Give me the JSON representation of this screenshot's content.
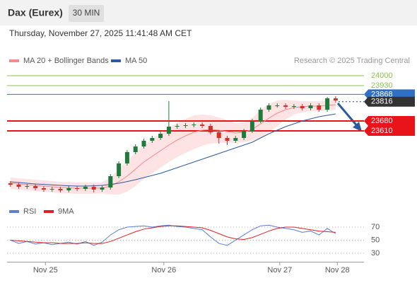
{
  "header": {
    "title": "Dax (Eurex)",
    "interval": "30 MIN",
    "timestamp": "Thursday, November 27, 2025 11:41:48 AM CET"
  },
  "chart_data": [
    {
      "type": "candlestick",
      "credit": "Research © 2025 Trading Central",
      "xlim": [
        -0.4,
        42.4
      ],
      "ylim": [
        23160,
        24060
      ],
      "xticks": [
        {
          "value": 4.2,
          "label": "Nov 25"
        },
        {
          "value": 18.4,
          "label": "Nov 26"
        },
        {
          "value": 32.3,
          "label": "Nov 27"
        },
        {
          "value": 39.2,
          "label": "Nov 28"
        }
      ],
      "candles": {
        "up_color": "#1e7b3c",
        "down_color": "#d0312d",
        "open": [
          23240,
          23230,
          23215,
          23220,
          23205,
          23195,
          23200,
          23190,
          23205,
          23200,
          23215,
          23195,
          23210,
          23290,
          23380,
          23460,
          23500,
          23540,
          23560,
          23590,
          23640,
          23645,
          23650,
          23655,
          23645,
          23600,
          23560,
          23540,
          23560,
          23610,
          23680,
          23760,
          23790,
          23790,
          23780,
          23785,
          23770,
          23790,
          23760,
          23840
        ],
        "high": [
          23255,
          23245,
          23235,
          23235,
          23220,
          23215,
          23215,
          23220,
          23220,
          23230,
          23230,
          23225,
          23305,
          23395,
          23475,
          23515,
          23555,
          23575,
          23605,
          23820,
          23660,
          23665,
          23670,
          23670,
          23660,
          23615,
          23575,
          23575,
          23625,
          23695,
          23775,
          23805,
          23805,
          23805,
          23800,
          23800,
          23805,
          23805,
          23850,
          23855
        ],
        "low": [
          23215,
          23200,
          23200,
          23190,
          23180,
          23180,
          23175,
          23175,
          23185,
          23185,
          23175,
          23180,
          23195,
          23275,
          23365,
          23445,
          23485,
          23525,
          23545,
          23575,
          23625,
          23630,
          23635,
          23630,
          23585,
          23520,
          23510,
          23525,
          23545,
          23595,
          23665,
          23745,
          23775,
          23765,
          23765,
          23755,
          23755,
          23745,
          23745,
          23810
        ],
        "close": [
          23230,
          23215,
          23220,
          23205,
          23195,
          23200,
          23190,
          23205,
          23200,
          23215,
          23195,
          23210,
          23290,
          23380,
          23460,
          23500,
          23540,
          23560,
          23590,
          23640,
          23645,
          23650,
          23655,
          23645,
          23600,
          23560,
          23540,
          23560,
          23610,
          23680,
          23760,
          23790,
          23790,
          23780,
          23785,
          23770,
          23790,
          23760,
          23840,
          23825
        ]
      },
      "overlays": [
        {
          "name": "MA 20 + Bollinger Bands",
          "color": "#f28b8b",
          "band_color": "#fde3e3",
          "values": [
            23240,
            23235,
            23230,
            23225,
            23220,
            23215,
            23210,
            23208,
            23205,
            23205,
            23205,
            23207,
            23220,
            23250,
            23290,
            23340,
            23390,
            23430,
            23470,
            23510,
            23545,
            23575,
            23600,
            23615,
            23620,
            23615,
            23605,
            23595,
            23600,
            23620,
            23660,
            23700,
            23735,
            23760,
            23775,
            23780,
            23785,
            23785,
            23790,
            23795
          ],
          "upper": [
            23280,
            23275,
            23270,
            23265,
            23260,
            23255,
            23250,
            23248,
            23245,
            23245,
            23245,
            23247,
            23280,
            23340,
            23400,
            23460,
            23510,
            23550,
            23590,
            23630,
            23665,
            23695,
            23720,
            23725,
            23720,
            23705,
            23685,
            23665,
            23670,
            23700,
            23760,
            23800,
            23825,
            23830,
            23825,
            23820,
            23820,
            23820,
            23825,
            23830
          ],
          "lower": [
            23200,
            23195,
            23190,
            23185,
            23180,
            23175,
            23170,
            23168,
            23165,
            23165,
            23165,
            23167,
            23160,
            23160,
            23180,
            23220,
            23270,
            23310,
            23350,
            23390,
            23425,
            23455,
            23480,
            23505,
            23520,
            23525,
            23525,
            23525,
            23530,
            23540,
            23560,
            23600,
            23645,
            23690,
            23725,
            23740,
            23750,
            23750,
            23755,
            23760
          ]
        },
        {
          "name": "MA 50",
          "color": "#2c5aa0",
          "values": [
            23250,
            23245,
            23240,
            23235,
            23232,
            23228,
            23225,
            23222,
            23220,
            23220,
            23222,
            23225,
            23232,
            23240,
            23252,
            23265,
            23280,
            23295,
            23310,
            23330,
            23350,
            23370,
            23390,
            23410,
            23430,
            23450,
            23470,
            23490,
            23510,
            23530,
            23560,
            23590,
            23615,
            23640,
            23660,
            23680,
            23695,
            23710,
            23720,
            23730
          ]
        }
      ],
      "levels": [
        {
          "value": 24000,
          "color": "#8bc34a",
          "boxed": false
        },
        {
          "value": 23930,
          "color": "#8bc34a",
          "boxed": false
        },
        {
          "value": 23868,
          "color": "#2f6fc4",
          "boxed": true
        },
        {
          "value": 23816,
          "color": "#333333",
          "boxed": true
        },
        {
          "value": 23680,
          "color": "#e8141a",
          "boxed": true
        },
        {
          "value": 23610,
          "color": "#e8141a",
          "boxed": true
        }
      ]
    },
    {
      "type": "line",
      "xlim": [
        -0.4,
        42.4
      ],
      "ylim": [
        19,
        82
      ],
      "yticks": [
        70,
        50,
        30
      ],
      "series": [
        {
          "name": "RSI",
          "color": "#5b7fd6",
          "values": [
            50,
            45,
            48,
            44,
            46,
            43,
            45,
            47,
            44,
            48,
            42,
            47,
            58,
            66,
            70,
            71,
            72,
            70,
            72,
            73,
            71,
            70,
            68,
            66,
            55,
            45,
            42,
            50,
            58,
            66,
            72,
            73,
            70,
            68,
            66,
            62,
            64,
            58,
            68,
            60
          ]
        },
        {
          "name": "9MA",
          "color": "#e02020",
          "values": [
            50,
            49,
            48,
            47,
            46,
            46,
            45,
            45,
            45,
            46,
            45,
            45,
            48,
            53,
            58,
            63,
            67,
            69,
            71,
            72,
            72,
            71,
            70,
            69,
            65,
            60,
            55,
            52,
            51,
            54,
            59,
            64,
            68,
            70,
            70,
            68,
            66,
            64,
            63,
            62
          ]
        }
      ]
    }
  ]
}
